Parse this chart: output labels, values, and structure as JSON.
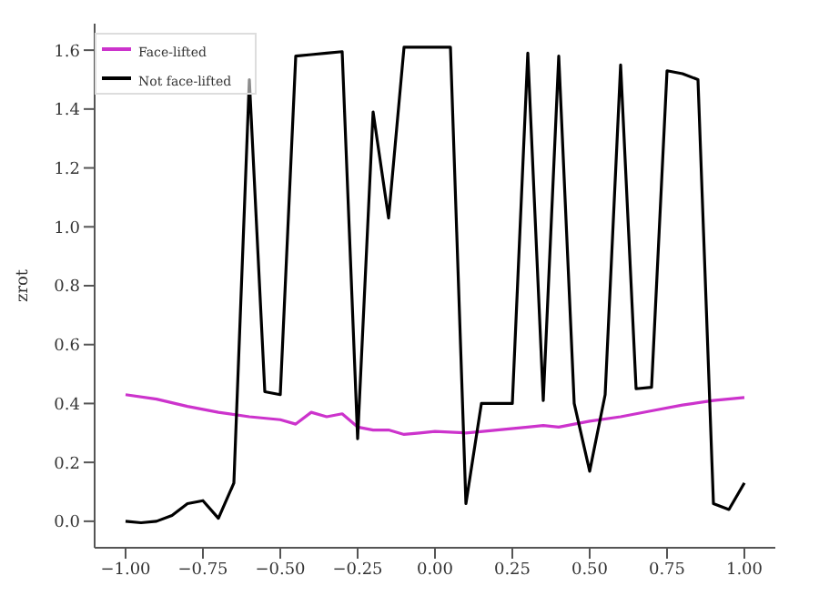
{
  "chart_data": {
    "type": "line",
    "ylabel": "zrot",
    "legend": "top left",
    "grid": false,
    "marker": "none",
    "line_style": "solid",
    "xlim": [
      -1.1,
      1.1
    ],
    "xticks": [
      {
        "value": -1,
        "label": "−1.00"
      },
      {
        "value": -0.75,
        "label": "−0.75"
      },
      {
        "value": -0.5,
        "label": "−0.50"
      },
      {
        "value": -0.25,
        "label": "−0.25"
      },
      {
        "value": 0,
        "label": "0.00"
      },
      {
        "value": 0.25,
        "label": "0.25"
      },
      {
        "value": 0.5,
        "label": "0.50"
      },
      {
        "value": 0.75,
        "label": "0.75"
      },
      {
        "value": 1,
        "label": "1.00"
      }
    ],
    "ylim": [
      -0.09,
      1.69
    ],
    "yticks": [
      {
        "value": 0,
        "label": "0.0"
      },
      {
        "value": 0.2,
        "label": "0.2"
      },
      {
        "value": 0.4,
        "label": "0.4"
      },
      {
        "value": 0.6,
        "label": "0.6"
      },
      {
        "value": 0.8,
        "label": "0.8"
      },
      {
        "value": 1,
        "label": "1.0"
      },
      {
        "value": 1.2,
        "label": "1.2"
      },
      {
        "value": 1.4,
        "label": "1.4"
      },
      {
        "value": 1.6,
        "label": "1.6"
      }
    ],
    "series": [
      {
        "name": "Face-lifted",
        "color": "#cc33cc",
        "x": [
          -1,
          -0.9,
          -0.8,
          -0.7,
          -0.6,
          -0.5,
          -0.45,
          -0.4,
          -0.35,
          -0.3,
          -0.25,
          -0.2,
          -0.15,
          -0.1,
          -0.05,
          0,
          0.1,
          0.2,
          0.3,
          0.35,
          0.4,
          0.5,
          0.6,
          0.7,
          0.8,
          0.9,
          1
        ],
        "values": [
          0.43,
          0.415,
          0.39,
          0.37,
          0.355,
          0.345,
          0.33,
          0.37,
          0.355,
          0.365,
          0.32,
          0.31,
          0.31,
          0.295,
          0.3,
          0.305,
          0.3,
          0.31,
          0.32,
          0.325,
          0.32,
          0.34,
          0.355,
          0.375,
          0.395,
          0.41,
          0.42
        ]
      },
      {
        "name": "Not face-lifted",
        "color": "#000000",
        "x": [
          -1,
          -0.95,
          -0.9,
          -0.85,
          -0.8,
          -0.75,
          -0.7,
          -0.65,
          -0.6,
          -0.55,
          -0.5,
          -0.45,
          -0.4,
          -0.35,
          -0.3,
          -0.25,
          -0.2,
          -0.15,
          -0.1,
          -0.05,
          0,
          0.05,
          0.1,
          0.15,
          0.2,
          0.25,
          0.3,
          0.35,
          0.4,
          0.45,
          0.5,
          0.55,
          0.6,
          0.65,
          0.7,
          0.75,
          0.8,
          0.85,
          0.9,
          0.95,
          1
        ],
        "values": [
          0,
          -0.005,
          0,
          0.02,
          0.06,
          0.07,
          0.01,
          0.13,
          1.5,
          0.44,
          0.43,
          1.58,
          1.585,
          1.59,
          1.595,
          0.28,
          1.39,
          1.03,
          1.61,
          1.61,
          1.61,
          1.61,
          0.06,
          0.4,
          0.4,
          0.4,
          1.59,
          0.41,
          1.58,
          0.4,
          0.17,
          0.43,
          1.55,
          0.45,
          0.455,
          1.53,
          1.52,
          1.5,
          0.06,
          0.04,
          0.13
        ]
      }
    ]
  }
}
